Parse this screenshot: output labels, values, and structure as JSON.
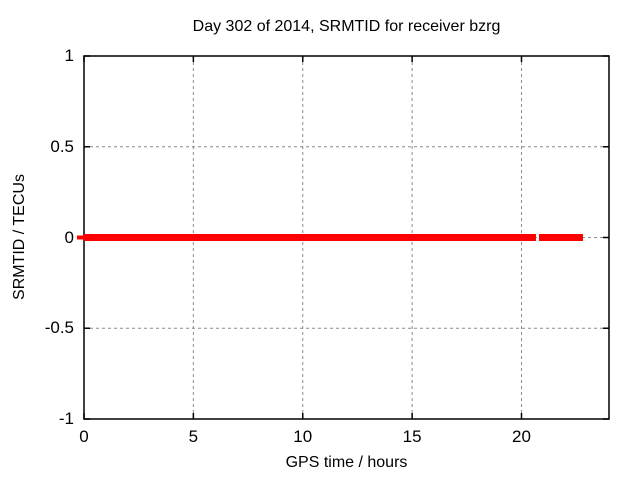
{
  "colors": {
    "background": "#ffffff",
    "plot_line": "#ff0000",
    "grid_line": "#8c8c8c",
    "border": "#000000",
    "text": "#000000"
  },
  "chart_data": {
    "type": "line",
    "title": "Day 302 of 2014, SRMTID for receiver bzrg",
    "xlabel": "GPS time / hours",
    "ylabel": "SRMTID / TECUs",
    "xlim": [
      0,
      24
    ],
    "ylim": [
      -1,
      1
    ],
    "xticks": [
      0,
      5,
      10,
      15,
      20
    ],
    "xtick_labels": [
      "0",
      "5",
      "10",
      "15",
      "20"
    ],
    "yticks": [
      -1,
      -0.5,
      0,
      0.5,
      1
    ],
    "ytick_labels": [
      "-1",
      "-0.5",
      "0",
      "0.5",
      "1"
    ],
    "grid": true,
    "grid_style": "dashed",
    "legend": "none",
    "series": [
      {
        "name": "SRMTID",
        "color": "#ff0000",
        "y_value": 0,
        "segments": [
          {
            "x_start": 0,
            "x_end": 20.66,
            "y": 0
          },
          {
            "x_start": 20.8,
            "x_end": 22.81,
            "y": 0
          }
        ],
        "left_edge_artifact": {
          "x_start": -0.32,
          "x_end": 0,
          "y": 0
        }
      }
    ]
  }
}
